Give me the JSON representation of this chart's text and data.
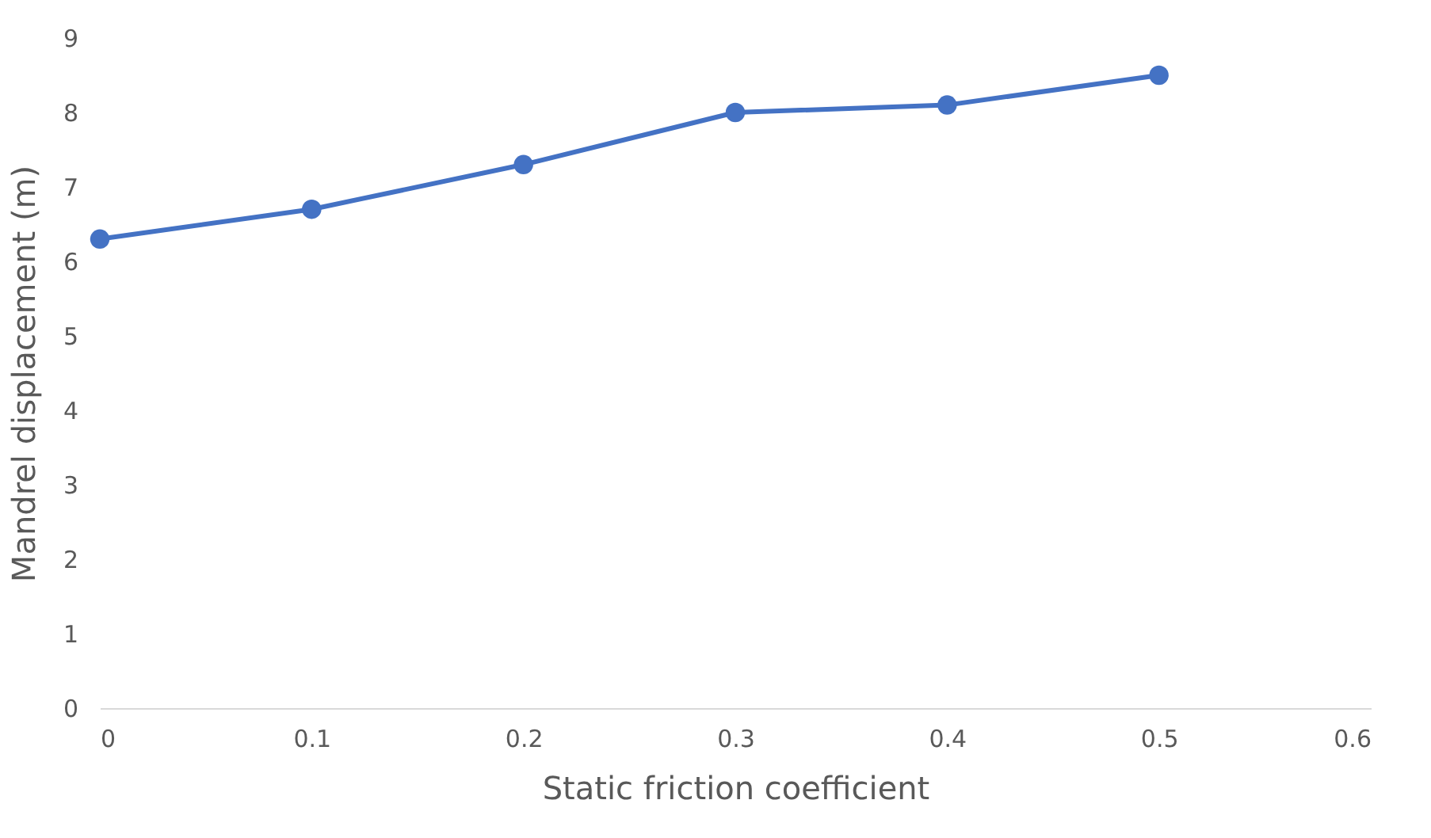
{
  "chart_data": {
    "type": "line",
    "xlabel": "Static friction coefficient",
    "ylabel": "Mandrel displacement (m)",
    "x": [
      0,
      0.1,
      0.2,
      0.3,
      0.4,
      0.5
    ],
    "series": [
      {
        "color": "#4472c4",
        "values": [
          6.3,
          6.7,
          7.3,
          8.0,
          8.1,
          8.5
        ]
      }
    ],
    "xlim": [
      0,
      0.6
    ],
    "xticks": [
      0,
      0.1,
      0.2,
      0.3,
      0.4,
      0.5,
      0.6
    ],
    "ylim": [
      0,
      9
    ],
    "yticks": [
      0,
      1,
      2,
      3,
      4,
      5,
      6,
      7,
      8,
      9
    ],
    "grid": false,
    "marker": "circle",
    "line_style": "solid"
  }
}
